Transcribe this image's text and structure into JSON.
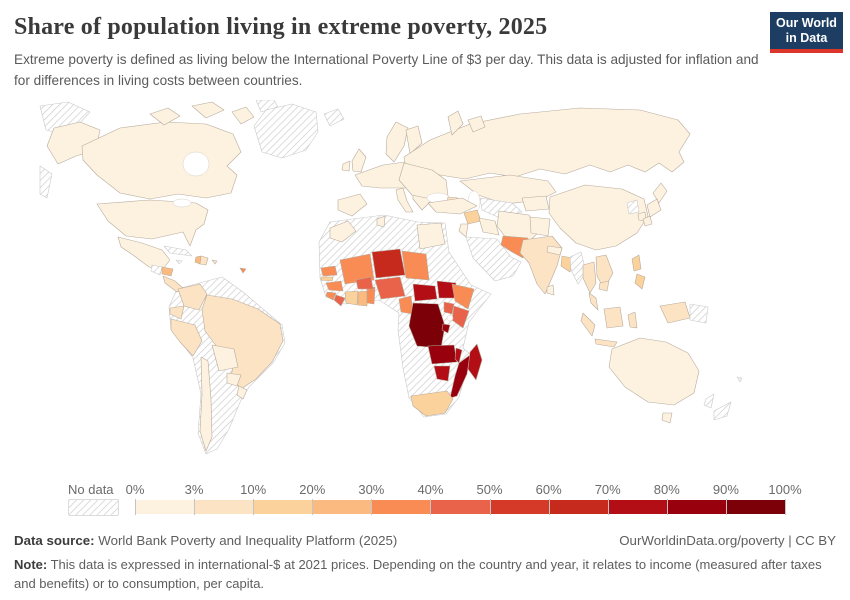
{
  "header": {
    "title": "Share of population living in extreme poverty, 2025",
    "subtitle": "Extreme poverty is defined as living below the International Poverty Line of $3 per day. This data is adjusted for inflation and for differences in living costs between countries.",
    "logo_line1": "Our World",
    "logo_line2": "in Data",
    "logo_bg": "#1d3d63",
    "logo_bar": "#dc352c"
  },
  "legend": {
    "no_data_label": "No data",
    "tick_labels": [
      "0%",
      "3%",
      "10%",
      "20%",
      "30%",
      "40%",
      "50%",
      "60%",
      "70%",
      "80%",
      "90%",
      "100%"
    ]
  },
  "chart_data": {
    "type": "choropleth",
    "title": "Share of population living in extreme poverty, 2025",
    "unit": "share of population (%)",
    "legend_position": "bottom",
    "bins": [
      {
        "key": "b0",
        "range": "0-3%",
        "color": "#fdf1e0"
      },
      {
        "key": "b1",
        "range": "3-10%",
        "color": "#fce3c4"
      },
      {
        "key": "b2",
        "range": "10-20%",
        "color": "#fcd29c"
      },
      {
        "key": "b3",
        "range": "20-30%",
        "color": "#fbbb80"
      },
      {
        "key": "b4",
        "range": "30-40%",
        "color": "#f98b55"
      },
      {
        "key": "b5",
        "range": "40-50%",
        "color": "#e9634a"
      },
      {
        "key": "b6",
        "range": "50-60%",
        "color": "#d53927"
      },
      {
        "key": "b7",
        "range": "60-70%",
        "color": "#c62a1d"
      },
      {
        "key": "b8",
        "range": "70-80%",
        "color": "#b30d15"
      },
      {
        "key": "b9",
        "range": "80-90%",
        "color": "#98000e"
      },
      {
        "key": "b10",
        "range": "90-100%",
        "color": "#7c0008"
      },
      {
        "key": "nodata",
        "range": "No data",
        "color": "hatch"
      }
    ],
    "regions": {
      "chukotka": "nodata",
      "alaska": "b0",
      "canada": "b0",
      "arctic-islands": "b0",
      "arctic-hatch": "nodata",
      "greenland": "nodata",
      "iceland": "nodata",
      "usa": "b0",
      "mexico": "b0",
      "guatemala": "nodata",
      "honduras": "b3",
      "nicaragua-panama": "b1",
      "cuba": "nodata",
      "haiti": "b3",
      "dominican": "b1",
      "jamaica": "nodata",
      "puertorico": "b1",
      "trinidad": "b4",
      "samerica-base": "nodata",
      "colombia": "b1",
      "ecuador": "b1",
      "peru": "b1",
      "brazil": "b1",
      "bolivia": "b0",
      "paraguay": "b0",
      "chile": "b0",
      "uruguay": "b0",
      "scandinavia": "b0",
      "finland": "b0",
      "uk-ireland": "b0",
      "iberia": "b0",
      "weurope": "b0",
      "italy": "b0",
      "balkans": "b0",
      "easteurope": "b0",
      "russia": "b0",
      "arcticrussia": "b0",
      "kazakhstan": "b0",
      "centralasia-s": "nodata",
      "centralasia-e": "b0",
      "caucasus": "b1",
      "turkey": "b0",
      "syria": "b2",
      "levant": "b0",
      "iraq": "b0",
      "iran": "b0",
      "arabia": "nodata",
      "afghanistan": "b0",
      "pakistan": "b4",
      "india": "b1",
      "nepal": "b0",
      "bangladesh": "b2",
      "srilanka": "b0",
      "china": "b0",
      "nkorea": "nodata",
      "skorea": "b0",
      "japan": "b0",
      "myanmar": "nodata",
      "thailand": "b1",
      "laos-vietnam": "b1",
      "cambodia": "b1",
      "indonesia": "b1",
      "philippines": "b2",
      "newguinea-west": "b1",
      "png-east": "nodata",
      "australia": "b0",
      "tasmania": "b0",
      "newzealand": "nodata",
      "fiji": "nodata",
      "africa-base": "nodata",
      "morocco": "b0",
      "tunisia": "b0",
      "egypt": "b0",
      "senegal": "b4",
      "gambia": "b2",
      "guinea": "b4",
      "sierraleone": "b4",
      "liberia": "b5",
      "cotedivoire": "b2",
      "ghana": "b3",
      "togo-benin": "b4",
      "mali": "b4",
      "burkina": "b5",
      "niger": "b7",
      "nigeria": "b5",
      "chad": "b4",
      "cameroon": "b4",
      "car": "b8",
      "ssudan": "b8",
      "ethiopia": "b4",
      "uganda": "b5",
      "kenya": "b5",
      "drc": "b10",
      "rwanda-burundi": "b9",
      "zambia": "b9",
      "malawi": "b8",
      "mozambique": "b9",
      "zimbabwe": "b8",
      "southafrica": "b2",
      "madagascar": "b8"
    }
  },
  "map": {
    "border": "#b7ab9d",
    "border_nodata": "#c9c9c9",
    "ocean": "#ffffff"
  },
  "footer": {
    "source_label": "Data source:",
    "source_text": " World Bank Poverty and Inequality Platform (2025)",
    "credit": "OurWorldinData.org/poverty | CC BY",
    "note_label": "Note:",
    "note_text": " This data is expressed in international-$ at 2021 prices. Depending on the country and year, it relates to income (measured after taxes and benefits) or to consumption, per capita."
  }
}
